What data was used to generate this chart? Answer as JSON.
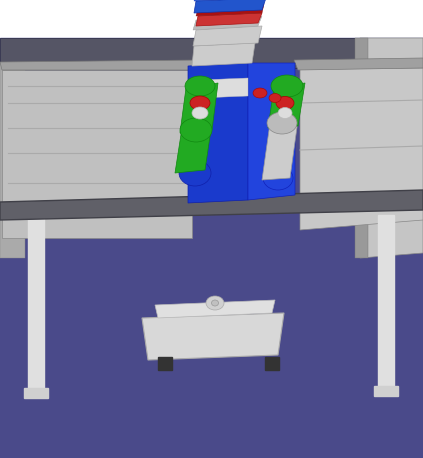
{
  "fig_width": 4.23,
  "fig_height": 4.58,
  "dpi": 100,
  "scene": {
    "background": "#4a4a8a",
    "table_leg_color": "#e0e0e0",
    "cabinet_left_color": "#c0c0c0",
    "cabinet_right_color": "#c8c8c8",
    "robot_body_color": "#1a3acc",
    "robot_green_color": "#22aa22",
    "robot_red_color": "#cc2222",
    "box_green_color": "#33bb33",
    "box_blue_color": "#2255cc",
    "box_red_color": "#cc3333"
  }
}
